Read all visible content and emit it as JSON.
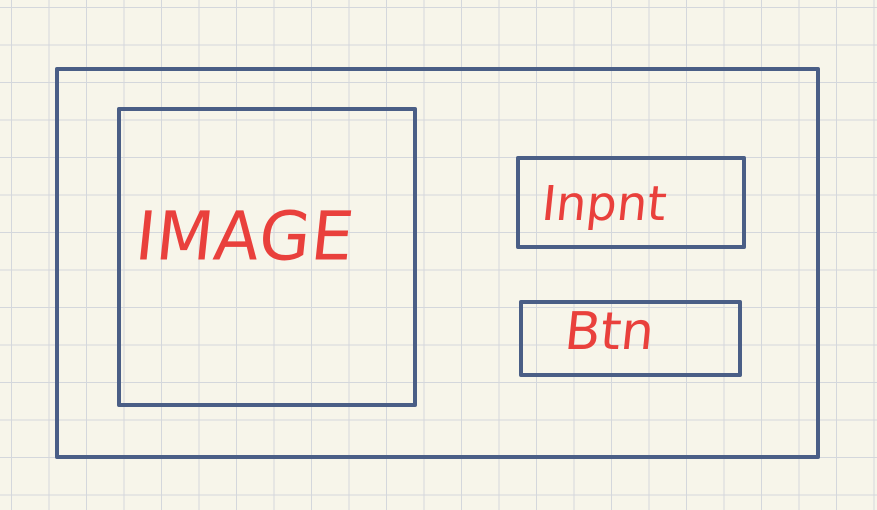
{
  "wireframe": {
    "image_placeholder_label": "IMAGE",
    "input_placeholder_label": "Inpnt",
    "button_placeholder_label": "Btn"
  },
  "colors": {
    "paper_background": "#f7f5ea",
    "grid_line": "#d4d7dc",
    "box_stroke": "#4a5e86",
    "label_ink": "#e9403c"
  }
}
